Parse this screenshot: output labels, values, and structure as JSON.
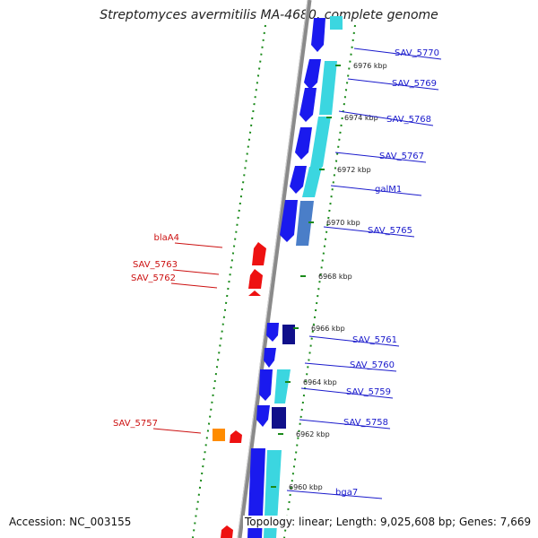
{
  "title": "Streptomyces avermitilis MA-4680, complete genome",
  "accession": "Accession: NC_003155",
  "topology": "Topology: linear; Length: 9,025,608 bp; Genes: 7,669",
  "colors": {
    "forward_label": "#1a1acc",
    "reverse_label": "#cc1111",
    "tick": "#1a8a1a",
    "backbone": "#8a8a8a"
  },
  "kbp_ticks": [
    {
      "label": "6976 kbp"
    },
    {
      "label": "6974 kbp"
    },
    {
      "label": "6972 kbp"
    },
    {
      "label": "6970 kbp"
    },
    {
      "label": "6968 kbp"
    },
    {
      "label": "6966 kbp"
    },
    {
      "label": "6964 kbp"
    },
    {
      "label": "6962 kbp"
    },
    {
      "label": "6960 kbp"
    }
  ],
  "forward_genes": [
    {
      "label": "SAV_5770"
    },
    {
      "label": "SAV_5769"
    },
    {
      "label": "SAV_5768"
    },
    {
      "label": "SAV_5767"
    },
    {
      "label": "galM1"
    },
    {
      "label": "SAV_5765"
    },
    {
      "label": "SAV_5761"
    },
    {
      "label": "SAV_5760"
    },
    {
      "label": "SAV_5759"
    },
    {
      "label": "SAV_5758"
    },
    {
      "label": "bga7"
    }
  ],
  "reverse_genes": [
    {
      "label": "blaA4"
    },
    {
      "label": "SAV_5763"
    },
    {
      "label": "SAV_5762"
    },
    {
      "label": "SAV_5757"
    }
  ]
}
